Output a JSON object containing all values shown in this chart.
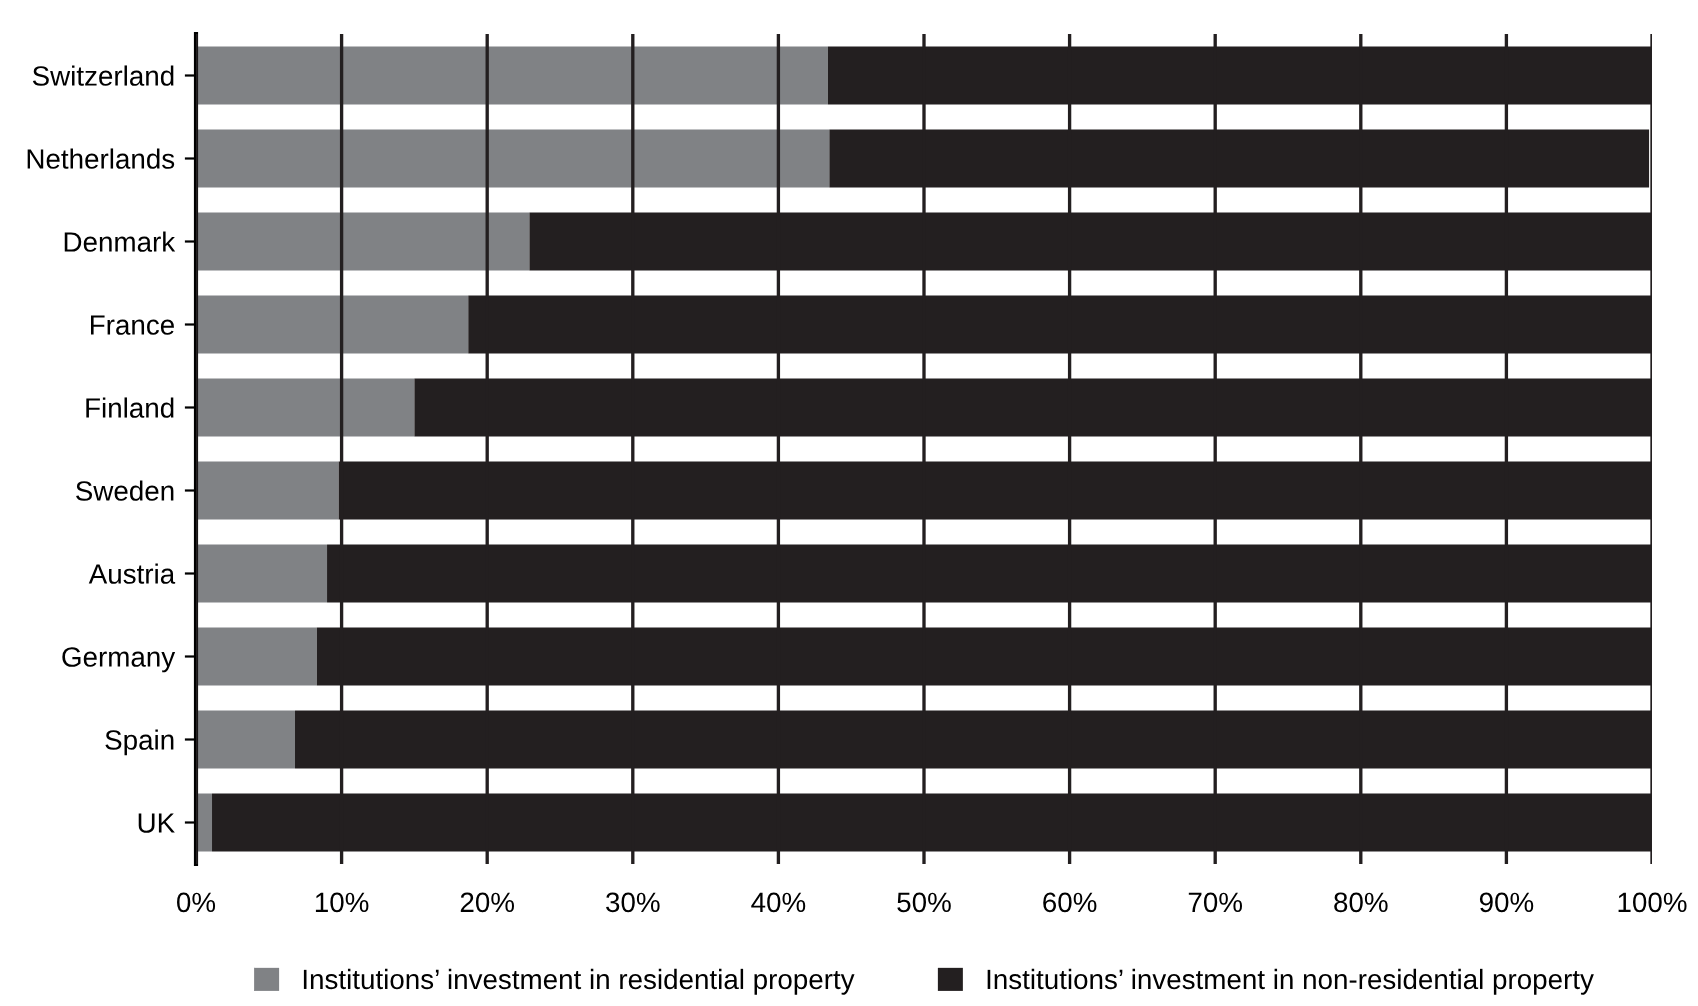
{
  "chart_data": {
    "type": "bar",
    "orientation": "horizontal",
    "stacked": true,
    "categories": [
      "Switzerland",
      "Netherlands",
      "Denmark",
      "France",
      "Finland",
      "Sweden",
      "Austria",
      "Germany",
      "Spain",
      "UK"
    ],
    "series": [
      {
        "name": "Institutions’ investment in residential property",
        "color": "#808285",
        "values": [
          43.4,
          43.5,
          22.9,
          18.7,
          15.0,
          9.8,
          9.0,
          8.3,
          6.8,
          1.1
        ]
      },
      {
        "name": "Institutions’ investment in non-residential property",
        "color": "#231f20",
        "values": [
          56.6,
          56.3,
          77.1,
          81.3,
          85.0,
          90.2,
          91.0,
          91.7,
          93.2,
          98.9
        ]
      }
    ],
    "xlim": [
      0,
      100
    ],
    "xticks": [
      {
        "value": 0,
        "label": "0%"
      },
      {
        "value": 10,
        "label": "10%"
      },
      {
        "value": 20,
        "label": "20%"
      },
      {
        "value": 30,
        "label": "30%"
      },
      {
        "value": 40,
        "label": "40%"
      },
      {
        "value": 50,
        "label": "50%"
      },
      {
        "value": 60,
        "label": "60%"
      },
      {
        "value": 70,
        "label": "70%"
      },
      {
        "value": 80,
        "label": "80%"
      },
      {
        "value": 90,
        "label": "90%"
      },
      {
        "value": 100,
        "label": "100%"
      }
    ],
    "grid": "x",
    "legend": "bottom"
  }
}
